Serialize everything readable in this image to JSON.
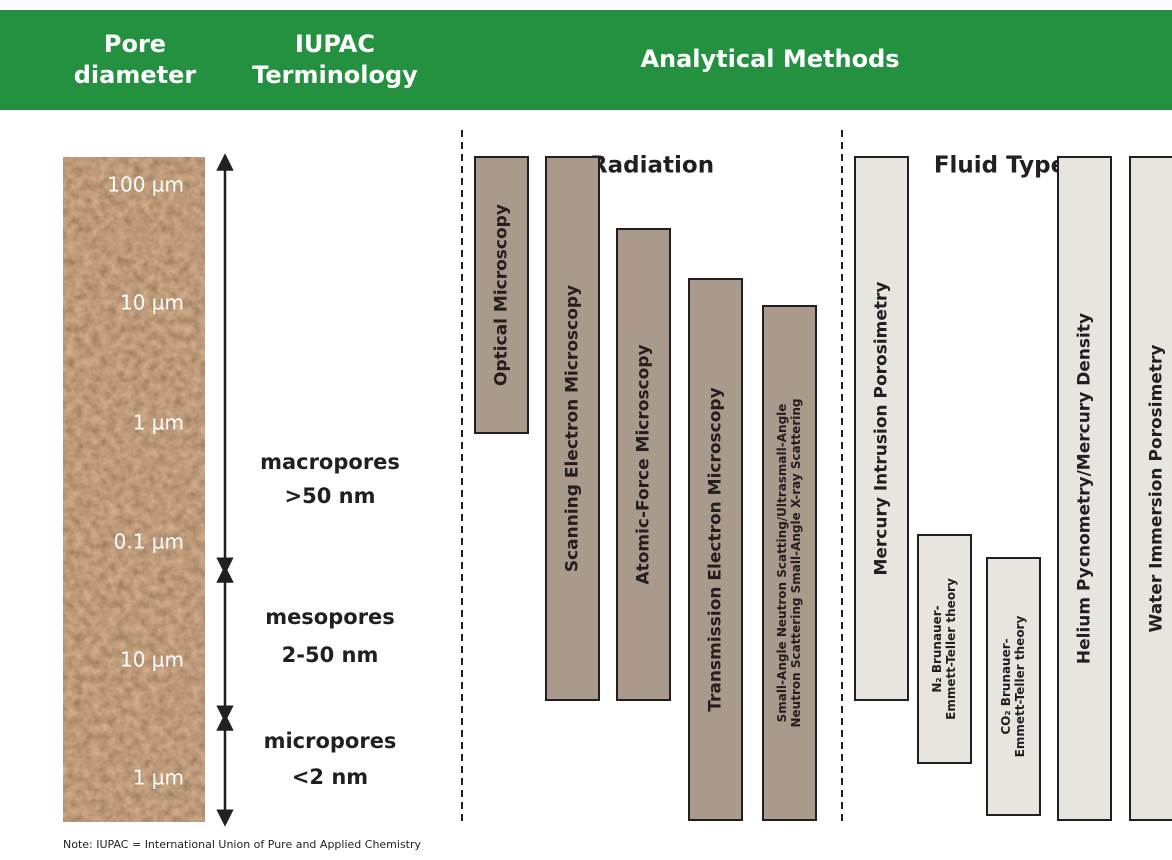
{
  "header": {
    "pore_diameter": [
      "Pore",
      "diameter"
    ],
    "iupac_terminology": [
      "IUPAC",
      "Terminology"
    ],
    "analytical_methods": "Analytical Methods"
  },
  "pore_scale": [
    "100 µm",
    "10 µm",
    "1 µm",
    "0.1 µm",
    "10 µm",
    "1 µm"
  ],
  "terminology": [
    {
      "name": "macropores",
      "range": ">50 nm"
    },
    {
      "name": "mesopores",
      "range": "2-50 nm"
    },
    {
      "name": "micropores",
      "range": "<2 nm"
    }
  ],
  "radiation": {
    "title": "Radiation",
    "methods": [
      [
        "Optical Microscopy"
      ],
      [
        "Scanning Electron Microscopy"
      ],
      [
        "Atomic-Force Microscopy"
      ],
      [
        "Transmission Electron Microscopy"
      ],
      [
        "Small-Angle Neutron Scatting/Ultrasmall-Angle",
        "Neutron Scattering  Small-Angle X-ray Scattering"
      ]
    ]
  },
  "fluid_type": {
    "title": "Fluid Type",
    "methods": [
      [
        "Mercury Intrusion Porosimetry"
      ],
      [
        "N₂ Brunauer-",
        "Emmett-Teller theory"
      ],
      [
        "CO₂ Brunauer-",
        "Emmett-Teller theory"
      ],
      [
        "Helium Pycnometry/Mercury Density"
      ],
      [
        "Water Immersion Porosimetry"
      ]
    ]
  },
  "note": "Note:  IUPAC = International Union of Pure and Applied Chemistry"
}
